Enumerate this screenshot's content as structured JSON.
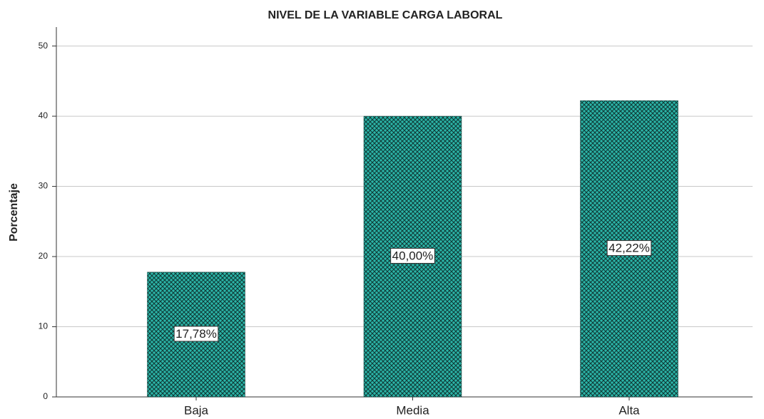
{
  "chart_data": {
    "type": "bar",
    "title": "NIVEL DE LA VARIABLE CARGA LABORAL",
    "y_label": "Porcentaje",
    "categories": [
      "Baja",
      "Media",
      "Alta"
    ],
    "values": [
      17.78,
      40.0,
      42.22
    ],
    "value_labels": [
      "17,78%",
      "40,00%",
      "42,22%"
    ],
    "color": "#2bb5a8",
    "ylim": [
      0,
      52.7
    ],
    "yticks": [
      0,
      10,
      20,
      30,
      40,
      50
    ],
    "grid": true
  }
}
